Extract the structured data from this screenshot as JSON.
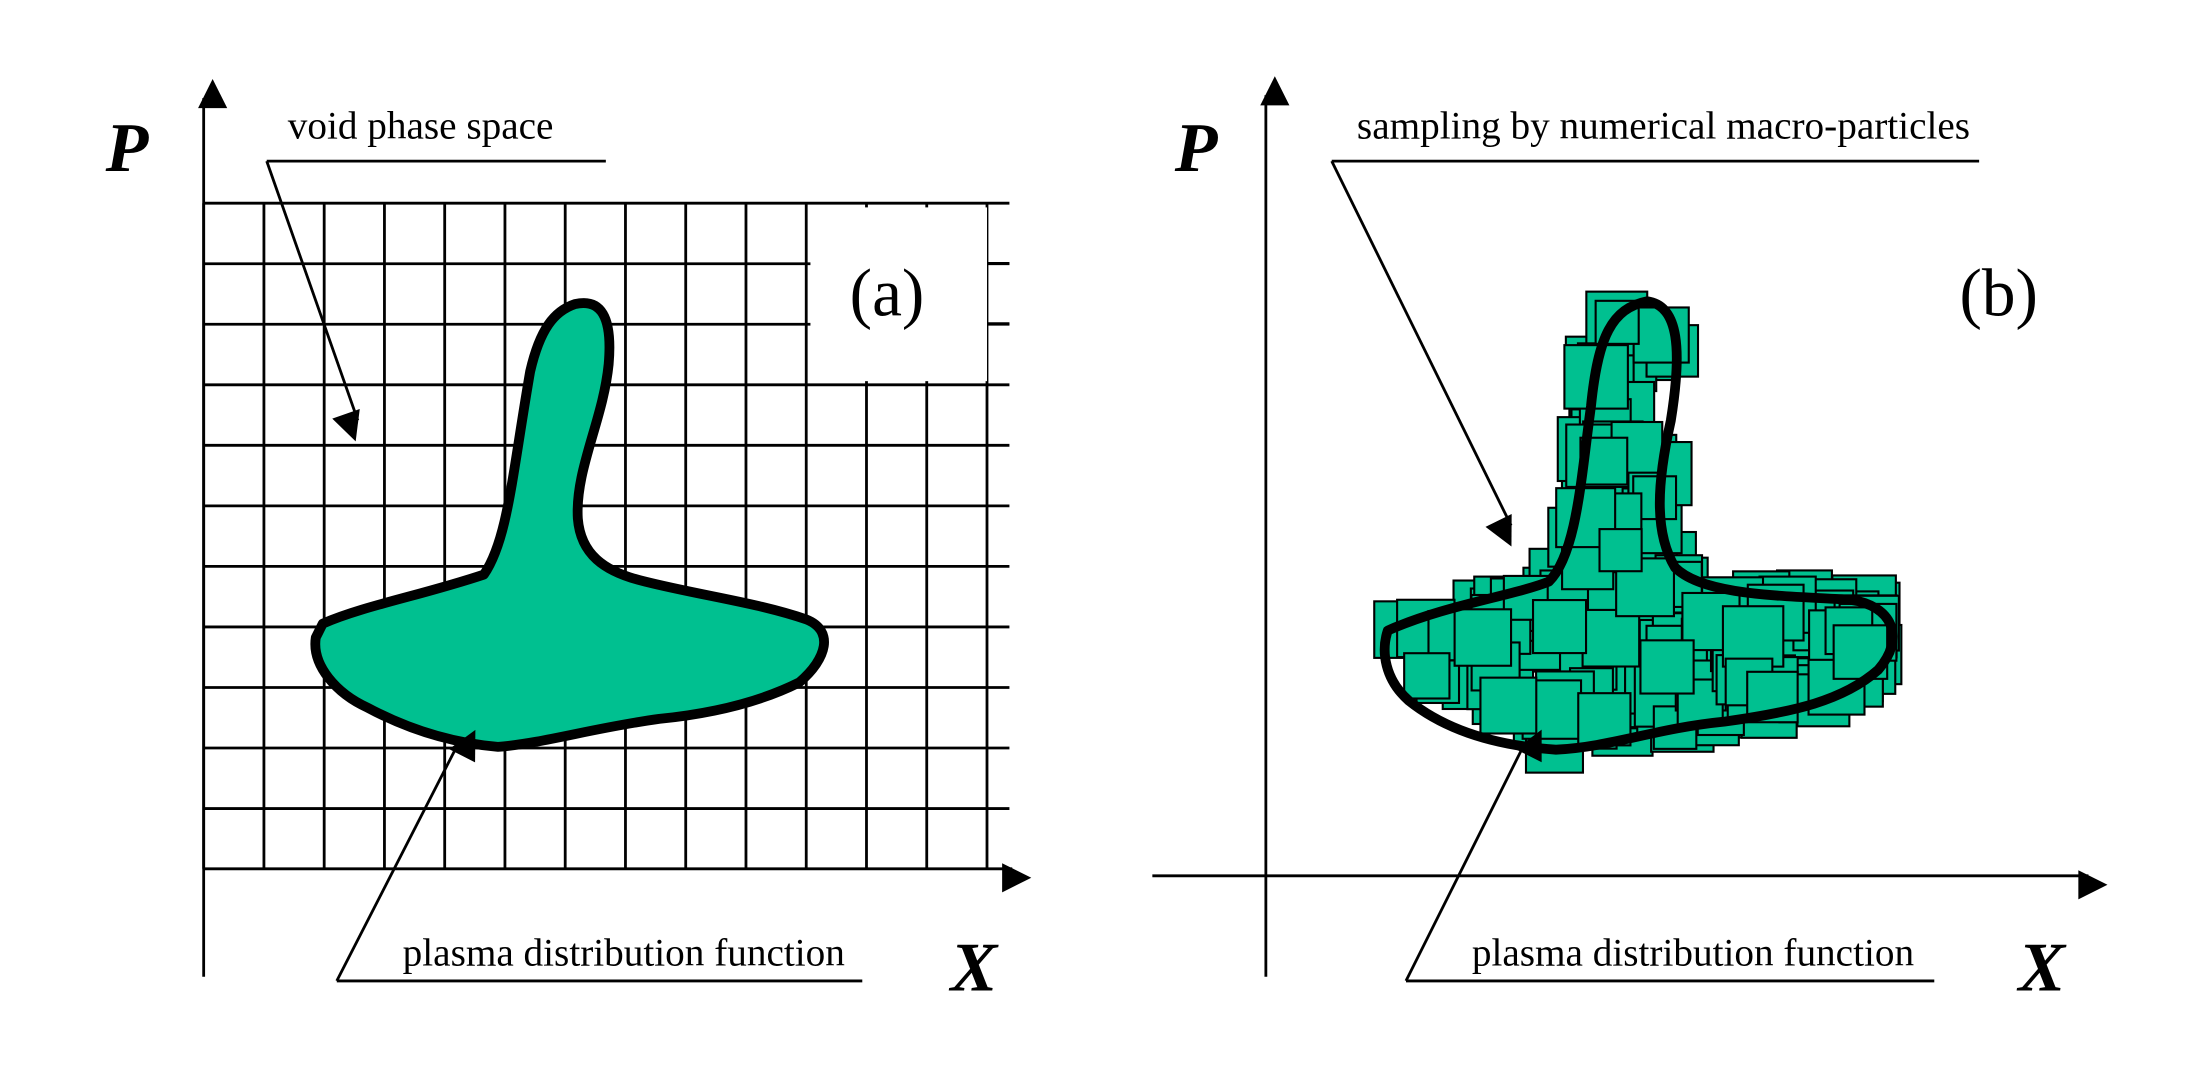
{
  "panels": [
    {
      "label": "(a)",
      "y_axis": "P",
      "x_axis": "X",
      "annotations": [
        "void phase space",
        "plasma distribution function"
      ]
    },
    {
      "label": "(b)",
      "y_axis": "P",
      "x_axis": "X",
      "annotations": [
        "sampling by numerical macro-particles",
        "plasma distribution function"
      ]
    }
  ]
}
